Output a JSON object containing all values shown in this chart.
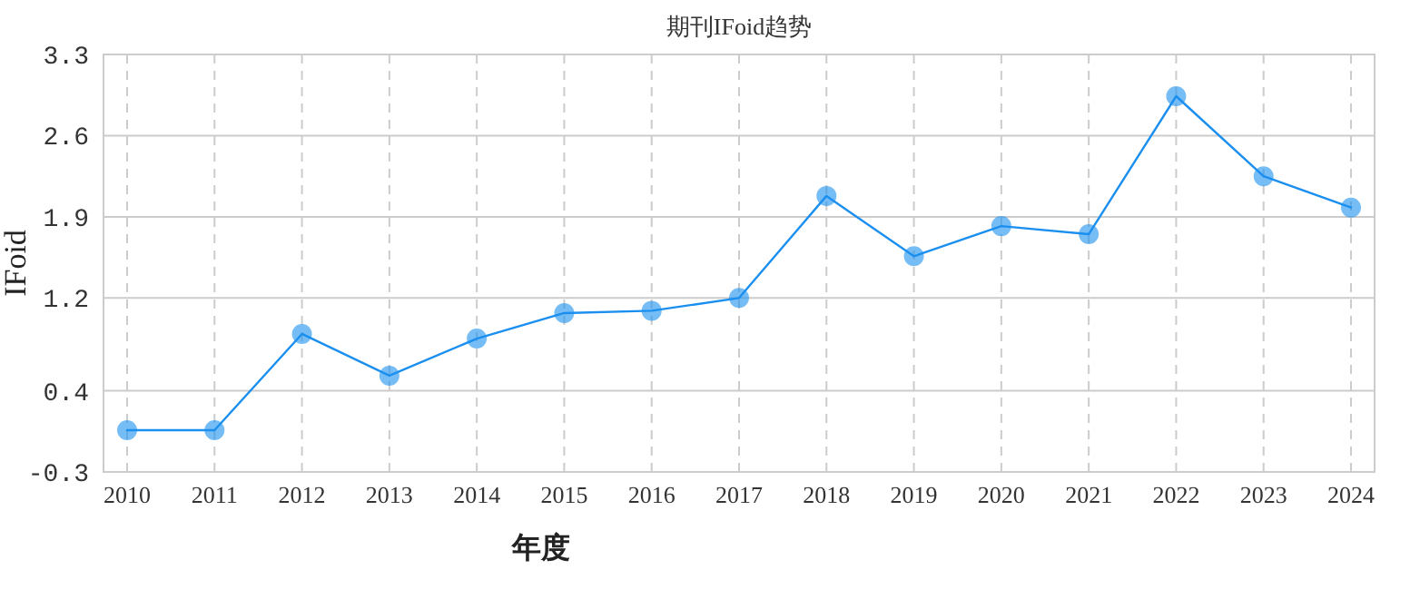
{
  "chart_data": {
    "type": "line",
    "title": "期刊IFoid趋势",
    "xlabel": "年度",
    "ylabel": "IFoid",
    "categories": [
      "2010",
      "2011",
      "2012",
      "2013",
      "2014",
      "2015",
      "2016",
      "2017",
      "2018",
      "2019",
      "2020",
      "2021",
      "2022",
      "2023",
      "2024"
    ],
    "series": [
      {
        "color": "#1a8fef",
        "values": [
          0.06,
          0.06,
          0.89,
          0.53,
          0.85,
          1.07,
          1.09,
          1.2,
          2.08,
          1.56,
          1.82,
          1.75,
          2.94,
          2.25,
          1.98
        ]
      }
    ],
    "ylim": [
      -0.3,
      3.3
    ],
    "yticks": [
      -0.3,
      0.4,
      1.2,
      1.9,
      2.6,
      3.3
    ],
    "grid": true,
    "marker": "circle",
    "line_style": "solid"
  }
}
